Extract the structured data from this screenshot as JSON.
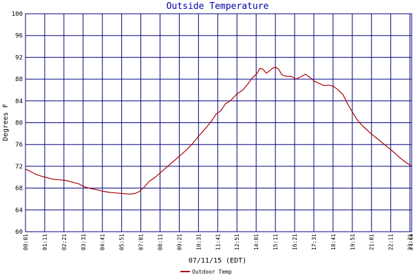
{
  "chart_data": {
    "type": "line",
    "title": "Outside Temperature",
    "ylabel": "Degrees F",
    "xlabel": "07/11/15 (EDT)",
    "ylim": [
      60,
      100
    ],
    "yticks": [
      "60",
      "64",
      "68",
      "72",
      "76",
      "80",
      "84",
      "88",
      "92",
      "96",
      "100"
    ],
    "x_tick_labels": [
      "00:01",
      "01:11",
      "02:21",
      "03:31",
      "04:41",
      "05:51",
      "07:01",
      "08:11",
      "09:21",
      "10:31",
      "11:41",
      "12:51",
      "14:01",
      "15:11",
      "16:21",
      "17:31",
      "18:41",
      "19:51",
      "21:01",
      "22:11",
      "23:21",
      "23:59"
    ],
    "grid": true,
    "legend_position": "bottom-left",
    "colors": {
      "background": "#ffffff",
      "grid": "#000080",
      "series": "#aa0000",
      "title": "#0000aa"
    },
    "series": [
      {
        "name": "Outdoor Temp",
        "x_unit": "hours after 00:01",
        "points": [
          [
            0.0,
            71.5
          ],
          [
            0.3,
            71.1
          ],
          [
            0.6,
            70.6
          ],
          [
            1.0,
            70.2
          ],
          [
            1.4,
            69.9
          ],
          [
            1.8,
            69.6
          ],
          [
            2.2,
            69.5
          ],
          [
            2.6,
            69.4
          ],
          [
            3.0,
            69.1
          ],
          [
            3.4,
            68.8
          ],
          [
            3.8,
            68.2
          ],
          [
            4.2,
            67.9
          ],
          [
            4.6,
            67.7
          ],
          [
            5.0,
            67.4
          ],
          [
            5.4,
            67.2
          ],
          [
            5.8,
            67.1
          ],
          [
            6.2,
            67.0
          ],
          [
            6.6,
            66.9
          ],
          [
            7.0,
            67.0
          ],
          [
            7.3,
            67.4
          ],
          [
            7.6,
            68.2
          ],
          [
            7.9,
            69.2
          ],
          [
            8.3,
            70.0
          ],
          [
            8.7,
            71.0
          ],
          [
            9.1,
            72.0
          ],
          [
            9.5,
            73.0
          ],
          [
            9.9,
            74.0
          ],
          [
            10.3,
            75.0
          ],
          [
            10.7,
            76.2
          ],
          [
            11.1,
            77.6
          ],
          [
            11.5,
            78.9
          ],
          [
            11.9,
            80.3
          ],
          [
            12.2,
            81.6
          ],
          [
            12.5,
            82.2
          ],
          [
            12.8,
            83.5
          ],
          [
            13.1,
            84.0
          ],
          [
            13.5,
            85.2
          ],
          [
            13.9,
            86.0
          ],
          [
            14.2,
            87.0
          ],
          [
            14.5,
            88.2
          ],
          [
            14.8,
            89.0
          ],
          [
            15.0,
            90.0
          ],
          [
            15.2,
            89.8
          ],
          [
            15.4,
            89.1
          ],
          [
            15.6,
            89.5
          ],
          [
            15.8,
            90.0
          ],
          [
            16.0,
            90.2
          ],
          [
            16.2,
            89.8
          ],
          [
            16.4,
            88.8
          ],
          [
            16.7,
            88.5
          ],
          [
            17.0,
            88.5
          ],
          [
            17.3,
            88.0
          ],
          [
            17.6,
            88.4
          ],
          [
            17.9,
            88.9
          ],
          [
            18.2,
            88.3
          ],
          [
            18.5,
            87.6
          ],
          [
            18.8,
            87.2
          ],
          [
            19.1,
            86.8
          ],
          [
            19.4,
            86.9
          ],
          [
            19.7,
            86.7
          ],
          [
            20.0,
            86.0
          ],
          [
            20.3,
            85.2
          ],
          [
            20.6,
            83.5
          ],
          [
            20.9,
            82.0
          ],
          [
            21.2,
            80.6
          ],
          [
            21.5,
            79.6
          ],
          [
            21.8,
            78.8
          ],
          [
            22.1,
            78.0
          ],
          [
            22.4,
            77.3
          ],
          [
            22.7,
            76.6
          ],
          [
            23.0,
            75.9
          ],
          [
            23.3,
            75.2
          ],
          [
            23.6,
            74.5
          ],
          [
            23.9,
            73.7
          ],
          [
            24.2,
            73.0
          ],
          [
            24.5,
            72.4
          ],
          [
            24.7,
            72.0
          ]
        ]
      }
    ]
  }
}
